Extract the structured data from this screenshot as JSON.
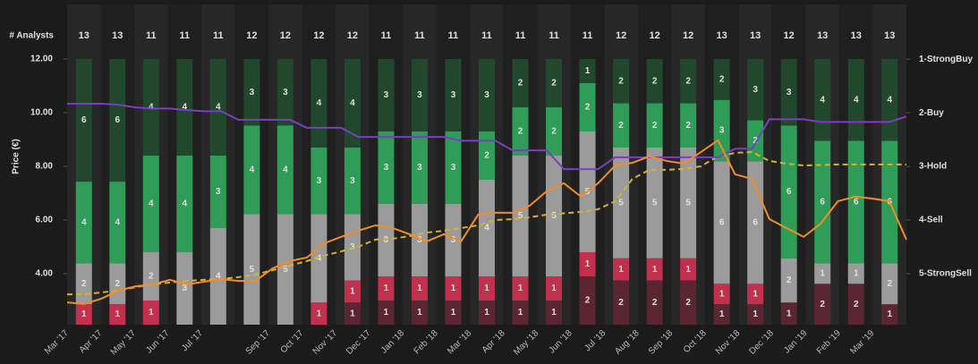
{
  "chart_data": {
    "type": "bar",
    "stacked": true,
    "header_label": "# Analysts",
    "analyst_counts": [
      13,
      13,
      11,
      11,
      11,
      12,
      12,
      12,
      12,
      11,
      11,
      11,
      11,
      11,
      11,
      11,
      12,
      12,
      12,
      13,
      13,
      12,
      13,
      13,
      13
    ],
    "categories": [
      "Mar '17",
      "Apr '17",
      "May '17",
      "Jun '17",
      "Jul '17",
      null,
      "Sep '17",
      "Oct '17",
      "Nov '17",
      "Dec '17",
      "Jan '18",
      "Feb '18",
      "Mar '18",
      "Apr '18",
      "May '18",
      "Jun '18",
      "Jul '18",
      "Aug '18",
      "Sep '18",
      "Oct '18",
      "Nov '18",
      "Dec '18",
      "Jan '19",
      "Feb '19",
      "Mar '19"
    ],
    "ylabel": "Price (€)",
    "ylim": [
      2.1,
      14.03
    ],
    "yticks": [
      {
        "value": 4,
        "label": "4.00"
      },
      {
        "value": 6,
        "label": "6.00"
      },
      {
        "value": 8,
        "label": "8.00"
      },
      {
        "value": 10,
        "label": "10.00"
      },
      {
        "value": 12,
        "label": "12.00"
      }
    ],
    "y2lim": [
      5.95,
      -0.02
    ],
    "y2ticks": [
      {
        "value": 1,
        "label": "1-StrongBuy"
      },
      {
        "value": 2,
        "label": "2-Buy"
      },
      {
        "value": 3,
        "label": "3-Hold"
      },
      {
        "value": 4,
        "label": "4-Sell"
      },
      {
        "value": 5,
        "label": "5-StrongSell"
      }
    ],
    "series": [
      {
        "color": "#5a2631",
        "values": [
          0,
          0,
          0,
          0,
          0,
          0,
          0,
          0,
          1,
          1,
          1,
          1,
          1,
          1,
          1,
          2,
          2,
          2,
          2,
          1,
          1,
          1,
          2,
          2,
          1
        ]
      },
      {
        "color": "#c1304c",
        "values": [
          1,
          1,
          1,
          0,
          0,
          0,
          0,
          1,
          1,
          1,
          1,
          1,
          1,
          1,
          1,
          1,
          1,
          1,
          1,
          1,
          1,
          0,
          0,
          0,
          0
        ]
      },
      {
        "color": "#9b9b9b",
        "values": [
          2,
          2,
          2,
          3,
          4,
          5,
          5,
          4,
          3,
          3,
          3,
          3,
          4,
          5,
          5,
          5,
          5,
          5,
          5,
          6,
          6,
          2,
          1,
          1,
          2
        ]
      },
      {
        "color": "#2f9c57",
        "values": [
          4,
          4,
          4,
          4,
          3,
          4,
          4,
          3,
          3,
          3,
          3,
          3,
          2,
          2,
          2,
          2,
          2,
          2,
          2,
          3,
          2,
          6,
          6,
          6,
          6
        ]
      },
      {
        "color": "#21472c",
        "values": [
          6,
          6,
          4,
          4,
          4,
          3,
          3,
          4,
          4,
          3,
          3,
          3,
          3,
          2,
          2,
          1,
          2,
          2,
          2,
          2,
          3,
          3,
          4,
          4,
          4
        ]
      }
    ],
    "lines": [
      {
        "type": "line",
        "color": "#d8b030",
        "dashed": true,
        "values": [
          3.23,
          3.23,
          3.3,
          3.37,
          3.5,
          3.6,
          3.67,
          3.73,
          3.77,
          3.8,
          3.87,
          3.97,
          4.13,
          4.3,
          4.47,
          4.67,
          4.83,
          5.0,
          5.27,
          5.3,
          5.4,
          5.53,
          5.6,
          5.7,
          5.8,
          6.0,
          6.03,
          6.1,
          6.2,
          6.25,
          6.3,
          6.4,
          6.7,
          7.53,
          7.87,
          7.87,
          7.9,
          8.0,
          8.37,
          8.5,
          8.53,
          8.2,
          8.1,
          8.03,
          8.05,
          8.07,
          8.07,
          8.07,
          8.07,
          8.07
        ]
      },
      {
        "type": "line",
        "color": "#7a3fc0",
        "axis": "y2",
        "values": [
          1.83,
          1.83,
          1.83,
          1.85,
          1.9,
          1.92,
          1.92,
          1.95,
          1.97,
          1.97,
          2.13,
          2.13,
          2.13,
          2.13,
          2.28,
          2.28,
          2.28,
          2.45,
          2.45,
          2.45,
          2.45,
          2.45,
          2.45,
          2.52,
          2.52,
          2.52,
          2.7,
          2.7,
          2.7,
          3.05,
          3.05,
          3.05,
          2.83,
          2.83,
          2.83,
          2.83,
          2.83,
          2.83,
          2.83,
          2.67,
          2.67,
          2.12,
          2.12,
          2.12,
          2.17,
          2.17,
          2.17,
          2.17,
          2.17,
          2.07
        ]
      },
      {
        "type": "line",
        "color": "#f28c28",
        "values": [
          2.93,
          2.87,
          3.07,
          3.37,
          3.53,
          3.6,
          3.77,
          3.6,
          3.7,
          3.8,
          3.73,
          3.73,
          4.2,
          4.47,
          4.6,
          5.13,
          5.37,
          5.6,
          5.8,
          5.7,
          5.47,
          5.2,
          5.47,
          5.2,
          6.2,
          6.27,
          6.27,
          6.53,
          7.07,
          7.37,
          6.87,
          7.37,
          8.03,
          8.13,
          8.37,
          8.2,
          8.1,
          8.53,
          8.97,
          7.7,
          7.53,
          6.03,
          5.7,
          5.37,
          5.87,
          6.7,
          6.87,
          6.8,
          6.7,
          5.27
        ]
      }
    ]
  }
}
